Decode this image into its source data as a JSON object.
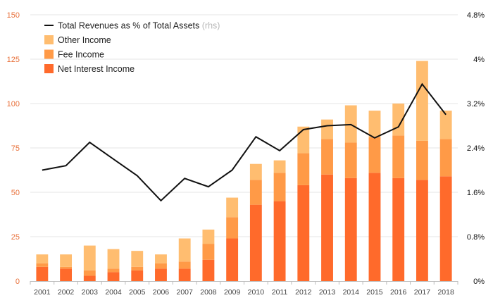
{
  "chart_data": {
    "type": "bar",
    "stacked": true,
    "categories": [
      "2001",
      "2002",
      "2003",
      "2004",
      "2005",
      "2006",
      "2007",
      "2008",
      "2009",
      "2010",
      "2011",
      "2012",
      "2013",
      "2014",
      "2015",
      "2016",
      "2017",
      "2018"
    ],
    "series": [
      {
        "name": "Net Interest Income",
        "color": "#ff6a2b",
        "axis": "left",
        "values": [
          8,
          7,
          3,
          5,
          6,
          7,
          7,
          12,
          24,
          43,
          45,
          54,
          60,
          58,
          61,
          58,
          57,
          59
        ]
      },
      {
        "name": "Fee Income",
        "color": "#ff9a47",
        "axis": "left",
        "values": [
          2,
          1,
          3,
          2,
          2,
          3,
          4,
          9,
          12,
          14,
          16,
          18,
          20,
          20,
          20,
          24,
          22,
          21
        ]
      },
      {
        "name": "Other Income",
        "color": "#ffbd70",
        "axis": "left",
        "values": [
          5,
          7,
          14,
          11,
          9,
          5,
          13,
          8,
          11,
          9,
          7,
          15,
          11,
          21,
          15,
          18,
          45,
          16
        ]
      },
      {
        "name": "Total Revenues as % of Total Assets",
        "note": "(rhs)",
        "color": "#111111",
        "axis": "right",
        "type": "line",
        "values": [
          2.0,
          2.08,
          2.5,
          2.2,
          1.9,
          1.45,
          1.85,
          1.7,
          2.0,
          2.6,
          2.35,
          2.73,
          2.8,
          2.82,
          2.58,
          2.78,
          3.55,
          3.0
        ]
      }
    ],
    "y_left": {
      "ylim": [
        0,
        150
      ],
      "ticks": [
        "0",
        "25",
        "50",
        "75",
        "100",
        "125",
        "150"
      ]
    },
    "y_right": {
      "ylim": [
        0,
        4.8
      ],
      "ticks": [
        "0%",
        "0.8%",
        "1.6%",
        "2.4%",
        "3.2%",
        "4%",
        "4.8%"
      ]
    },
    "grid": true,
    "legend_placement": "top-left",
    "title": "",
    "xlabel": "",
    "ylabel": ""
  }
}
